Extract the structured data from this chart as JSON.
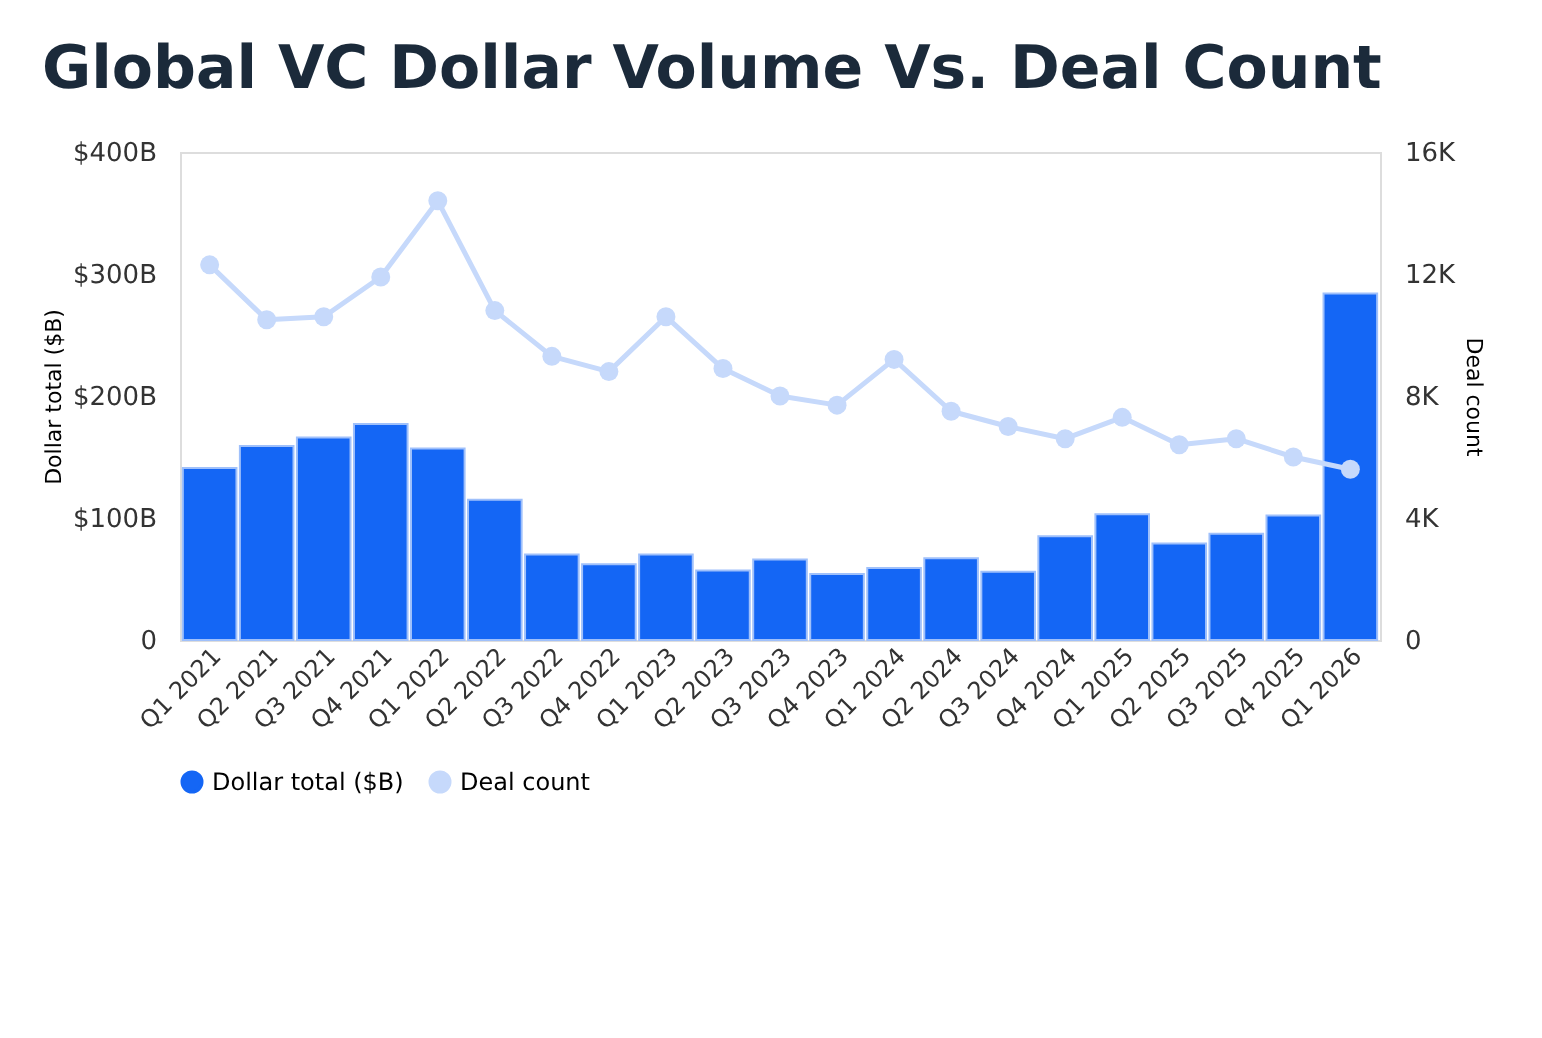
{
  "chart_data": {
    "type": "bar",
    "title": "Global VC Dollar Volume Vs. Deal Count",
    "categories": [
      "Q1 2021",
      "Q2 2021",
      "Q3 2021",
      "Q4 2021",
      "Q1 2022",
      "Q2 2022",
      "Q3 2022",
      "Q4 2022",
      "Q1 2023",
      "Q2 2023",
      "Q3 2023",
      "Q4 2023",
      "Q1 2024",
      "Q2 2024",
      "Q3 2024",
      "Q4 2024",
      "Q1 2025",
      "Q2 2025",
      "Q3 2025",
      "Q4 2025",
      "Q1 2026"
    ],
    "series": [
      {
        "name": "Dollar total ($B)",
        "color": "#1466f5",
        "values": [
          141,
          159,
          166,
          177,
          157,
          115,
          70,
          62,
          70,
          57,
          66,
          54,
          59,
          67,
          56,
          85,
          103,
          79,
          87,
          102,
          284
        ]
      },
      {
        "name": "Deal count",
        "type": "line",
        "axis": "y2",
        "color": "#c6d9fb",
        "values": [
          12300,
          10500,
          10600,
          11900,
          14400,
          10800,
          9300,
          8800,
          10600,
          8900,
          8000,
          7700,
          9200,
          7500,
          7000,
          6600,
          7300,
          6400,
          6600,
          6000,
          5600
        ]
      }
    ],
    "ylabel": "Dollar total ($B)",
    "y2label": "Deal count",
    "ylim": [
      0,
      400
    ],
    "yticks": [
      0,
      {
        "value": 100,
        "label": "$100B"
      },
      {
        "value": 200,
        "label": "$200B"
      },
      {
        "value": 300,
        "label": "$300B"
      },
      {
        "value": 400,
        "label": "$400B"
      }
    ],
    "y2lim": [
      0,
      16000
    ],
    "y2ticks": [
      0,
      {
        "value": 4000,
        "label": "4K"
      },
      {
        "value": 8000,
        "label": "8K"
      },
      {
        "value": 12000,
        "label": "12K"
      },
      {
        "value": 16000,
        "label": "16K"
      }
    ],
    "marker": "circle",
    "line_style": "solid",
    "grid": false,
    "legend": "bottom"
  }
}
